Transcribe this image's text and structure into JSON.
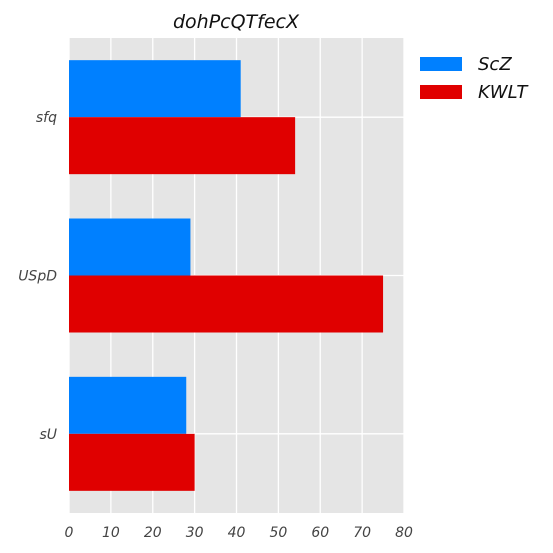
{
  "chart_data": {
    "type": "bar",
    "orientation": "horizontal",
    "title": "dohPcQTfecX",
    "xlabel": "",
    "ylabel": "",
    "categories": [
      "sfq",
      "USpD",
      "sU"
    ],
    "series": [
      {
        "name": "ScZ",
        "color": "#0080ff",
        "values": [
          41,
          29,
          28
        ]
      },
      {
        "name": "KWLT",
        "color": "#e00000",
        "values": [
          54,
          75,
          30
        ]
      }
    ],
    "xlim": [
      0,
      80
    ],
    "xticks": [
      "0",
      "10",
      "20",
      "30",
      "40",
      "50",
      "60",
      "70",
      "80"
    ],
    "grid": true,
    "legend": "top-right"
  }
}
